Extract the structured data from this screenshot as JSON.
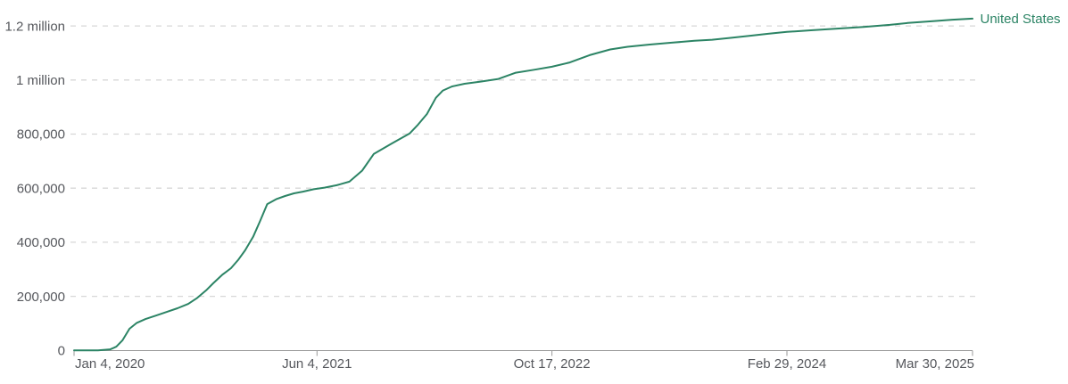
{
  "chart_data": {
    "type": "line",
    "legend": {
      "label": "United States"
    },
    "x_axis": {
      "range": [
        "2020-01-04",
        "2025-03-30"
      ],
      "ticks": [
        {
          "label": "Jan 4, 2020",
          "date": "2020-01-04",
          "align": "start"
        },
        {
          "label": "Jun 4, 2021",
          "date": "2021-06-04",
          "align": "middle"
        },
        {
          "label": "Oct 17, 2022",
          "date": "2022-10-17",
          "align": "middle"
        },
        {
          "label": "Feb 29, 2024",
          "date": "2024-02-29",
          "align": "middle"
        },
        {
          "label": "Mar 30, 2025",
          "date": "2025-03-30",
          "align": "end"
        }
      ]
    },
    "y_axis": {
      "max_value": 1200000,
      "grid": "dashed",
      "ticks": [
        {
          "label": "0",
          "value": 0
        },
        {
          "label": "200,000",
          "value": 200000
        },
        {
          "label": "400,000",
          "value": 400000
        },
        {
          "label": "600,000",
          "value": 600000
        },
        {
          "label": "800,000",
          "value": 800000
        },
        {
          "label": "1 million",
          "value": 1000000
        },
        {
          "label": "1.2 million",
          "value": 1200000
        }
      ]
    },
    "series": [
      {
        "name": "United States",
        "color": "#2c8465",
        "points": [
          [
            "2020-01-04",
            0
          ],
          [
            "2020-02-24",
            0
          ],
          [
            "2020-03-21",
            4000
          ],
          [
            "2020-04-03",
            14000
          ],
          [
            "2020-04-16",
            37000
          ],
          [
            "2020-05-01",
            80000
          ],
          [
            "2020-05-16",
            101000
          ],
          [
            "2020-06-04",
            116000
          ],
          [
            "2020-06-27",
            129000
          ],
          [
            "2020-07-20",
            143000
          ],
          [
            "2020-08-11",
            156000
          ],
          [
            "2020-09-03",
            172000
          ],
          [
            "2020-09-22",
            194000
          ],
          [
            "2020-10-11",
            222000
          ],
          [
            "2020-10-26",
            248000
          ],
          [
            "2020-11-14",
            279000
          ],
          [
            "2020-12-03",
            304000
          ],
          [
            "2020-12-18",
            334000
          ],
          [
            "2021-01-02",
            370000
          ],
          [
            "2021-01-19",
            420000
          ],
          [
            "2021-02-03",
            479000
          ],
          [
            "2021-02-18",
            541000
          ],
          [
            "2021-03-09",
            559000
          ],
          [
            "2021-03-28",
            571000
          ],
          [
            "2021-04-16",
            581000
          ],
          [
            "2021-05-05",
            587000
          ],
          [
            "2021-05-28",
            596000
          ],
          [
            "2021-06-20",
            602000
          ],
          [
            "2021-07-16",
            611000
          ],
          [
            "2021-08-12",
            624000
          ],
          [
            "2021-09-08",
            665000
          ],
          [
            "2021-10-03",
            727000
          ],
          [
            "2021-11-10",
            765000
          ],
          [
            "2021-12-18",
            802000
          ],
          [
            "2022-01-05",
            835000
          ],
          [
            "2022-01-24",
            874000
          ],
          [
            "2022-02-12",
            934000
          ],
          [
            "2022-02-27",
            961000
          ],
          [
            "2022-03-18",
            976000
          ],
          [
            "2022-04-14",
            986000
          ],
          [
            "2022-05-18",
            994000
          ],
          [
            "2022-06-25",
            1004000
          ],
          [
            "2022-08-01",
            1027000
          ],
          [
            "2022-09-09",
            1038000
          ],
          [
            "2022-10-17",
            1049000
          ],
          [
            "2022-11-24",
            1065000
          ],
          [
            "2023-01-05",
            1092000
          ],
          [
            "2023-02-18",
            1113000
          ],
          [
            "2023-03-27",
            1123000
          ],
          [
            "2023-05-13",
            1131000
          ],
          [
            "2023-06-29",
            1138000
          ],
          [
            "2023-08-16",
            1145000
          ],
          [
            "2023-09-23",
            1149000
          ],
          [
            "2023-11-01",
            1156000
          ],
          [
            "2023-12-15",
            1164000
          ],
          [
            "2024-01-20",
            1171000
          ],
          [
            "2024-02-29",
            1178000
          ],
          [
            "2024-04-20",
            1184000
          ],
          [
            "2024-06-15",
            1190000
          ],
          [
            "2024-08-10",
            1196000
          ],
          [
            "2024-10-05",
            1204000
          ],
          [
            "2024-11-12",
            1211000
          ],
          [
            "2025-01-08",
            1218000
          ],
          [
            "2025-02-15",
            1223000
          ],
          [
            "2025-03-30",
            1227000
          ]
        ]
      }
    ]
  },
  "style": {
    "line_color": "#2c8465",
    "legend_color": "#2c8465",
    "label_color": "#56585d",
    "grid_color": "#d7d7d7",
    "axis_color": "#999999",
    "background": "#ffffff"
  }
}
